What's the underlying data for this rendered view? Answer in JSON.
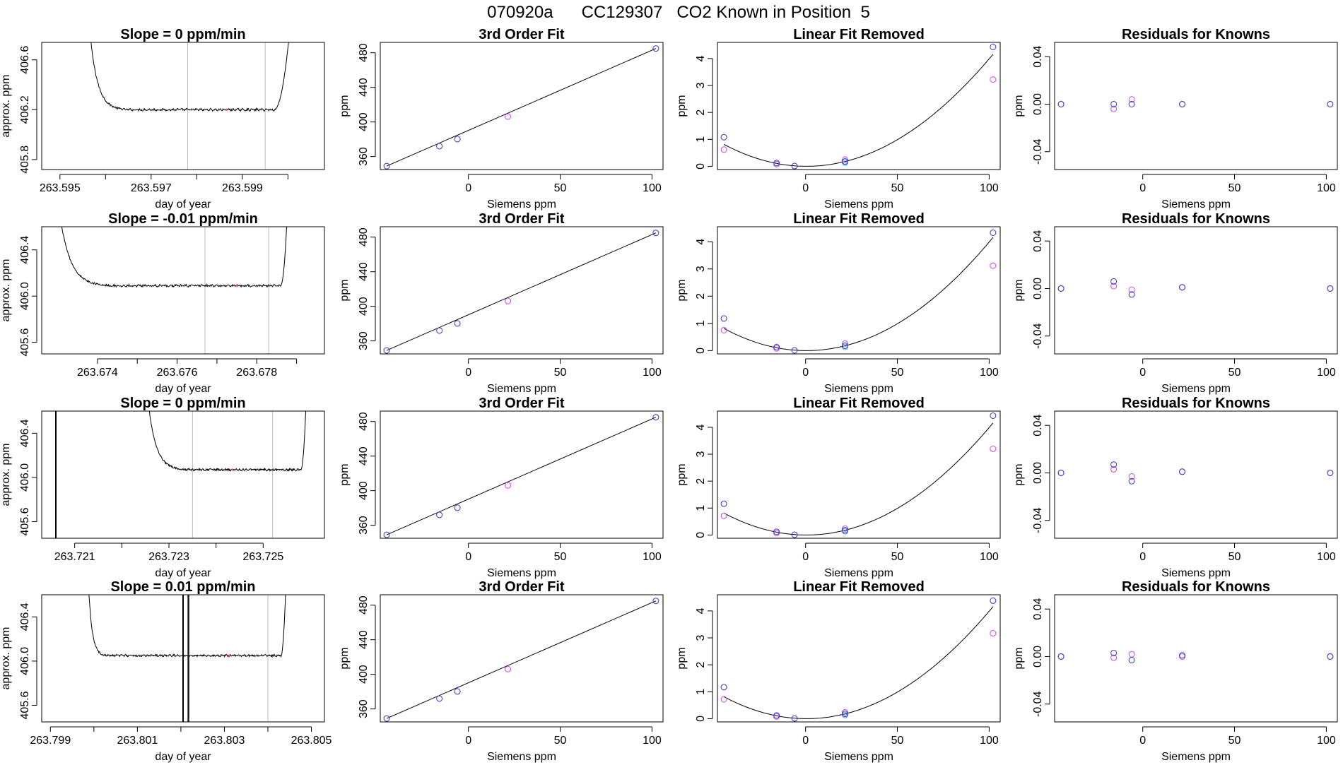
{
  "figure": {
    "title": "070920a      CC129307   CO2 Known in Position  5"
  },
  "style": {
    "knowns_color": "#3333cc",
    "measured_color": "#cc44ee",
    "reference_color": "#22aaee",
    "trace_color": "#000000",
    "marker_line_color": "#bbbbbb",
    "sample_marker_color": "#ff4444"
  },
  "chart_data": [
    {
      "panel": "trace",
      "type": "line",
      "title": "Slope =  0  ppm/min",
      "xlabel": "day of year",
      "ylabel": "approx. ppm",
      "xlim": [
        263.5946,
        263.6008
      ],
      "ylim": [
        405.72,
        406.74
      ],
      "xticks": [
        263.595,
        263.596,
        263.597,
        263.598,
        263.599,
        263.6
      ],
      "xtick_labels": [
        "263.595",
        "",
        "263.597",
        "",
        "263.599",
        ""
      ],
      "yticks": [
        405.8,
        406.2,
        406.6
      ],
      "ytick_labels": [
        "405.8",
        "406.2",
        "406.6"
      ],
      "vlines": [
        263.5978,
        263.5995
      ],
      "trace": {
        "start": 263.5955,
        "plateau_start": 263.5965,
        "plateau_end": 263.5997,
        "end": 263.6003,
        "plateau": 406.2,
        "noise": 0.008
      },
      "vertical_spikes": []
    },
    {
      "panel": "fit",
      "type": "scatter",
      "title": "3rd Order Fit",
      "xlabel": "Siemens ppm",
      "ylabel": "ppm",
      "xlim": [
        -48,
        106
      ],
      "ylim": [
        345,
        492
      ],
      "xticks": [
        0,
        50,
        100
      ],
      "yticks": [
        360,
        400,
        440,
        480
      ],
      "points": [
        {
          "x": -44.5,
          "y": 349.0
        },
        {
          "x": -15.8,
          "y": 372.0
        },
        {
          "x": -6.0,
          "y": 380.2
        },
        {
          "x": 21.5,
          "y": 406.2
        },
        {
          "x": 102.1,
          "y": 484.9
        }
      ],
      "line": [
        {
          "x": -44.5,
          "y": 349.0
        },
        {
          "x": 102.1,
          "y": 484.9
        }
      ]
    },
    {
      "panel": "linear_removed",
      "type": "scatter",
      "title": "Linear Fit Removed",
      "xlabel": "Siemens ppm",
      "ylabel": "ppm",
      "xlim": [
        -48,
        106
      ],
      "ylim": [
        -0.12,
        4.6
      ],
      "xticks": [
        0,
        50,
        100
      ],
      "yticks": [
        0,
        1,
        2,
        3,
        4
      ],
      "knowns": [
        {
          "x": -44.5,
          "y": 1.08
        },
        {
          "x": -15.8,
          "y": 0.12
        },
        {
          "x": -6.0,
          "y": 0.01
        },
        {
          "x": 21.5,
          "y": 0.18
        },
        {
          "x": 102.1,
          "y": 4.43
        }
      ],
      "measured": [
        {
          "x": -44.5,
          "y": 0.62
        },
        {
          "x": -15.8,
          "y": 0.08
        },
        {
          "x": 21.5,
          "y": 0.25
        },
        {
          "x": 102.1,
          "y": 3.22
        }
      ],
      "reference": [
        {
          "x": 21.5,
          "y": 0.14
        }
      ],
      "curve": {
        "a": 0.000403,
        "vertex": 0.5,
        "xmin": -44.5,
        "xmax": 102.1
      }
    },
    {
      "panel": "residuals",
      "type": "scatter",
      "title": "Residuals for Knowns",
      "xlabel": "Siemens ppm",
      "ylabel": "ppm",
      "xlim": [
        -48,
        106
      ],
      "ylim": [
        -0.055,
        0.052
      ],
      "xticks": [
        0,
        50,
        100
      ],
      "yticks": [
        -0.04,
        0.0,
        0.04
      ],
      "ytick_labels": [
        "-0.04",
        "0.00",
        "0.04"
      ],
      "knowns": [
        {
          "x": -44.5,
          "y": 0.0
        },
        {
          "x": -15.8,
          "y": 0.0
        },
        {
          "x": -6.0,
          "y": 0.0
        },
        {
          "x": 21.5,
          "y": 0.0
        },
        {
          "x": 102.1,
          "y": 0.0
        }
      ],
      "measured": [
        {
          "x": -44.5,
          "y": 0.0
        },
        {
          "x": -15.8,
          "y": -0.004
        },
        {
          "x": -6.0,
          "y": 0.004
        },
        {
          "x": 21.5,
          "y": 0.0
        },
        {
          "x": 102.1,
          "y": 0.0
        }
      ]
    },
    {
      "panel": "trace",
      "type": "line",
      "title": "Slope =  -0.01  ppm/min",
      "xlabel": "day of year",
      "ylabel": "approx. ppm",
      "xlim": [
        263.6726,
        263.6797
      ],
      "ylim": [
        405.5,
        406.6
      ],
      "xticks": [
        263.674,
        263.675,
        263.676,
        263.677,
        263.678,
        263.679
      ],
      "xtick_labels": [
        "263.674",
        "",
        "263.676",
        "",
        "263.678",
        ""
      ],
      "yticks": [
        405.6,
        406.0,
        406.4
      ],
      "ytick_labels": [
        "405.6",
        "406.0",
        "406.4"
      ],
      "vlines": [
        263.6767,
        263.6783
      ],
      "trace": {
        "start": 263.6728,
        "plateau_start": 263.6744,
        "plateau_end": 263.6786,
        "end": 263.6789,
        "plateau": 406.09,
        "noise": 0.008
      },
      "vertical_spikes": []
    },
    {
      "panel": "fit",
      "type": "scatter",
      "title": "3rd Order Fit",
      "xlabel": "Siemens ppm",
      "ylabel": "ppm",
      "xlim": [
        -48,
        106
      ],
      "ylim": [
        345,
        492
      ],
      "xticks": [
        0,
        50,
        100
      ],
      "yticks": [
        360,
        400,
        440,
        480
      ],
      "points": [
        {
          "x": -44.5,
          "y": 349.0
        },
        {
          "x": -15.8,
          "y": 372.0
        },
        {
          "x": -6.0,
          "y": 380.2
        },
        {
          "x": 21.5,
          "y": 406.1
        },
        {
          "x": 102.1,
          "y": 484.9
        }
      ],
      "line": [
        {
          "x": -44.5,
          "y": 349.0
        },
        {
          "x": 102.1,
          "y": 484.9
        }
      ]
    },
    {
      "panel": "linear_removed",
      "type": "scatter",
      "title": "Linear Fit Removed",
      "xlabel": "Siemens ppm",
      "ylabel": "ppm",
      "xlim": [
        -48,
        106
      ],
      "ylim": [
        -0.12,
        4.55
      ],
      "xticks": [
        0,
        50,
        100
      ],
      "yticks": [
        0,
        1,
        2,
        3,
        4
      ],
      "knowns": [
        {
          "x": -44.5,
          "y": 1.18
        },
        {
          "x": -15.8,
          "y": 0.13
        },
        {
          "x": -6.0,
          "y": 0.01
        },
        {
          "x": 21.5,
          "y": 0.18
        },
        {
          "x": 102.1,
          "y": 4.33
        }
      ],
      "measured": [
        {
          "x": -44.5,
          "y": 0.75
        },
        {
          "x": -15.8,
          "y": 0.08
        },
        {
          "x": 21.5,
          "y": 0.26
        },
        {
          "x": 102.1,
          "y": 3.12
        }
      ],
      "reference": [
        {
          "x": 21.5,
          "y": 0.14
        }
      ],
      "curve": {
        "a": 0.000403,
        "vertex": 0.5,
        "xmin": -44.5,
        "xmax": 102.1
      }
    },
    {
      "panel": "residuals",
      "type": "scatter",
      "title": "Residuals for Knowns",
      "xlabel": "Siemens ppm",
      "ylabel": "ppm",
      "xlim": [
        -48,
        106
      ],
      "ylim": [
        -0.055,
        0.052
      ],
      "xticks": [
        0,
        50,
        100
      ],
      "yticks": [
        -0.04,
        0.0,
        0.04
      ],
      "ytick_labels": [
        "-0.04",
        "0.00",
        "0.04"
      ],
      "knowns": [
        {
          "x": -44.5,
          "y": 0.0
        },
        {
          "x": -15.8,
          "y": 0.006
        },
        {
          "x": -6.0,
          "y": -0.005
        },
        {
          "x": 21.5,
          "y": 0.001
        },
        {
          "x": 102.1,
          "y": 0.0
        }
      ],
      "measured": [
        {
          "x": -44.5,
          "y": 0.0
        },
        {
          "x": -15.8,
          "y": 0.002
        },
        {
          "x": -6.0,
          "y": -0.001
        },
        {
          "x": 21.5,
          "y": 0.001
        },
        {
          "x": 102.1,
          "y": 0.0
        }
      ]
    },
    {
      "panel": "trace",
      "type": "line",
      "title": "Slope =  0  ppm/min",
      "xlabel": "day of year",
      "ylabel": "approx. ppm",
      "xlim": [
        263.7203,
        263.7263
      ],
      "ylim": [
        405.45,
        406.6
      ],
      "xticks": [
        263.721,
        263.722,
        263.723,
        263.724,
        263.725
      ],
      "xtick_labels": [
        "263.721",
        "",
        "263.723",
        "",
        "263.725"
      ],
      "yticks": [
        405.6,
        406.0,
        406.4
      ],
      "ytick_labels": [
        "405.6",
        "406.0",
        "406.4"
      ],
      "vlines": [
        263.7235,
        263.7252
      ],
      "trace": {
        "start": 263.7224,
        "plateau_start": 263.7234,
        "plateau_end": 263.7258,
        "end": 263.726,
        "plateau": 406.07,
        "noise": 0.008
      },
      "vertical_spikes": [
        263.7206
      ]
    },
    {
      "panel": "fit",
      "type": "scatter",
      "title": "3rd Order Fit",
      "xlabel": "Siemens ppm",
      "ylabel": "ppm",
      "xlim": [
        -48,
        106
      ],
      "ylim": [
        345,
        492
      ],
      "xticks": [
        0,
        50,
        100
      ],
      "yticks": [
        360,
        400,
        440,
        480
      ],
      "points": [
        {
          "x": -44.5,
          "y": 349.0
        },
        {
          "x": -15.8,
          "y": 372.0
        },
        {
          "x": -6.0,
          "y": 380.2
        },
        {
          "x": 21.5,
          "y": 406.1
        },
        {
          "x": 102.1,
          "y": 484.9
        }
      ],
      "line": [
        {
          "x": -44.5,
          "y": 349.0
        },
        {
          "x": 102.1,
          "y": 484.9
        }
      ]
    },
    {
      "panel": "linear_removed",
      "type": "scatter",
      "title": "Linear Fit Removed",
      "xlabel": "Siemens ppm",
      "ylabel": "ppm",
      "xlim": [
        -48,
        106
      ],
      "ylim": [
        -0.12,
        4.6
      ],
      "xticks": [
        0,
        50,
        100
      ],
      "yticks": [
        0,
        1,
        2,
        3,
        4
      ],
      "knowns": [
        {
          "x": -44.5,
          "y": 1.16
        },
        {
          "x": -15.8,
          "y": 0.12
        },
        {
          "x": -6.0,
          "y": 0.01
        },
        {
          "x": 21.5,
          "y": 0.18
        },
        {
          "x": 102.1,
          "y": 4.43
        }
      ],
      "measured": [
        {
          "x": -44.5,
          "y": 0.71
        },
        {
          "x": -15.8,
          "y": 0.07
        },
        {
          "x": 21.5,
          "y": 0.24
        },
        {
          "x": 102.1,
          "y": 3.2
        }
      ],
      "reference": [
        {
          "x": 21.5,
          "y": 0.14
        }
      ],
      "curve": {
        "a": 0.000403,
        "vertex": 0.5,
        "xmin": -44.5,
        "xmax": 102.1
      }
    },
    {
      "panel": "residuals",
      "type": "scatter",
      "title": "Residuals for Knowns",
      "xlabel": "Siemens ppm",
      "ylabel": "ppm",
      "xlim": [
        -48,
        106
      ],
      "ylim": [
        -0.055,
        0.052
      ],
      "xticks": [
        0,
        50,
        100
      ],
      "yticks": [
        -0.04,
        0.0,
        0.04
      ],
      "ytick_labels": [
        "-0.04",
        "0.00",
        "0.04"
      ],
      "knowns": [
        {
          "x": -44.5,
          "y": 0.0
        },
        {
          "x": -15.8,
          "y": 0.007
        },
        {
          "x": -6.0,
          "y": -0.007
        },
        {
          "x": 21.5,
          "y": 0.001
        },
        {
          "x": 102.1,
          "y": 0.0
        }
      ],
      "measured": [
        {
          "x": -44.5,
          "y": 0.0
        },
        {
          "x": -15.8,
          "y": 0.003
        },
        {
          "x": -6.0,
          "y": -0.003
        },
        {
          "x": 21.5,
          "y": 0.001
        },
        {
          "x": 102.1,
          "y": 0.0
        }
      ]
    },
    {
      "panel": "trace",
      "type": "line",
      "title": "Slope =  0.01  ppm/min",
      "xlabel": "day of year",
      "ylabel": "approx. ppm",
      "xlim": [
        263.7988,
        263.8053
      ],
      "ylim": [
        405.45,
        406.6
      ],
      "xticks": [
        263.799,
        263.8,
        263.801,
        263.802,
        263.803,
        263.804,
        263.805
      ],
      "xtick_labels": [
        "263.799",
        "",
        "263.801",
        "",
        "263.803",
        "",
        "263.805"
      ],
      "yticks": [
        405.6,
        406.0,
        406.4
      ],
      "ytick_labels": [
        "405.6",
        "406.0",
        "406.4"
      ],
      "vlines": [
        263.8022,
        263.804
      ],
      "trace": {
        "start": 263.7998,
        "plateau_start": 263.8003,
        "plateau_end": 263.8043,
        "end": 263.8045,
        "plateau": 406.05,
        "noise": 0.008
      },
      "vertical_spikes": [
        263.80205,
        263.80217
      ]
    },
    {
      "panel": "fit",
      "type": "scatter",
      "title": "3rd Order Fit",
      "xlabel": "Siemens ppm",
      "ylabel": "ppm",
      "xlim": [
        -48,
        106
      ],
      "ylim": [
        345,
        492
      ],
      "xticks": [
        0,
        50,
        100
      ],
      "yticks": [
        360,
        400,
        440,
        480
      ],
      "points": [
        {
          "x": -44.5,
          "y": 349.0
        },
        {
          "x": -15.8,
          "y": 372.0
        },
        {
          "x": -6.0,
          "y": 380.2
        },
        {
          "x": 21.5,
          "y": 406.0
        },
        {
          "x": 102.1,
          "y": 484.9
        }
      ],
      "line": [
        {
          "x": -44.5,
          "y": 349.0
        },
        {
          "x": 102.1,
          "y": 484.9
        }
      ]
    },
    {
      "panel": "linear_removed",
      "type": "scatter",
      "title": "Linear Fit Removed",
      "xlabel": "Siemens ppm",
      "ylabel": "ppm",
      "xlim": [
        -48,
        106
      ],
      "ylim": [
        -0.12,
        4.6
      ],
      "xticks": [
        0,
        50,
        100
      ],
      "yticks": [
        0,
        1,
        2,
        3,
        4
      ],
      "knowns": [
        {
          "x": -44.5,
          "y": 1.17
        },
        {
          "x": -15.8,
          "y": 0.12
        },
        {
          "x": -6.0,
          "y": 0.01
        },
        {
          "x": 21.5,
          "y": 0.18
        },
        {
          "x": 102.1,
          "y": 4.38
        }
      ],
      "measured": [
        {
          "x": -44.5,
          "y": 0.72
        },
        {
          "x": -15.8,
          "y": 0.08
        },
        {
          "x": 21.5,
          "y": 0.24
        },
        {
          "x": 102.1,
          "y": 3.17
        }
      ],
      "reference": [
        {
          "x": 21.5,
          "y": 0.14
        }
      ],
      "curve": {
        "a": 0.000403,
        "vertex": 0.5,
        "xmin": -44.5,
        "xmax": 102.1
      }
    },
    {
      "panel": "residuals",
      "type": "scatter",
      "title": "Residuals for Knowns",
      "xlabel": "Siemens ppm",
      "ylabel": "ppm",
      "xlim": [
        -48,
        106
      ],
      "ylim": [
        -0.055,
        0.052
      ],
      "xticks": [
        0,
        50,
        100
      ],
      "yticks": [
        -0.04,
        0.0,
        0.04
      ],
      "ytick_labels": [
        "-0.04",
        "0.00",
        "0.04"
      ],
      "knowns": [
        {
          "x": -44.5,
          "y": 0.0
        },
        {
          "x": -15.8,
          "y": 0.003
        },
        {
          "x": -6.0,
          "y": -0.003
        },
        {
          "x": 21.5,
          "y": 0.001
        },
        {
          "x": 102.1,
          "y": 0.0
        }
      ],
      "measured": [
        {
          "x": -44.5,
          "y": 0.0
        },
        {
          "x": -15.8,
          "y": -0.001
        },
        {
          "x": -6.0,
          "y": 0.002
        },
        {
          "x": 21.5,
          "y": 0.0
        },
        {
          "x": 102.1,
          "y": 0.0
        }
      ]
    }
  ]
}
